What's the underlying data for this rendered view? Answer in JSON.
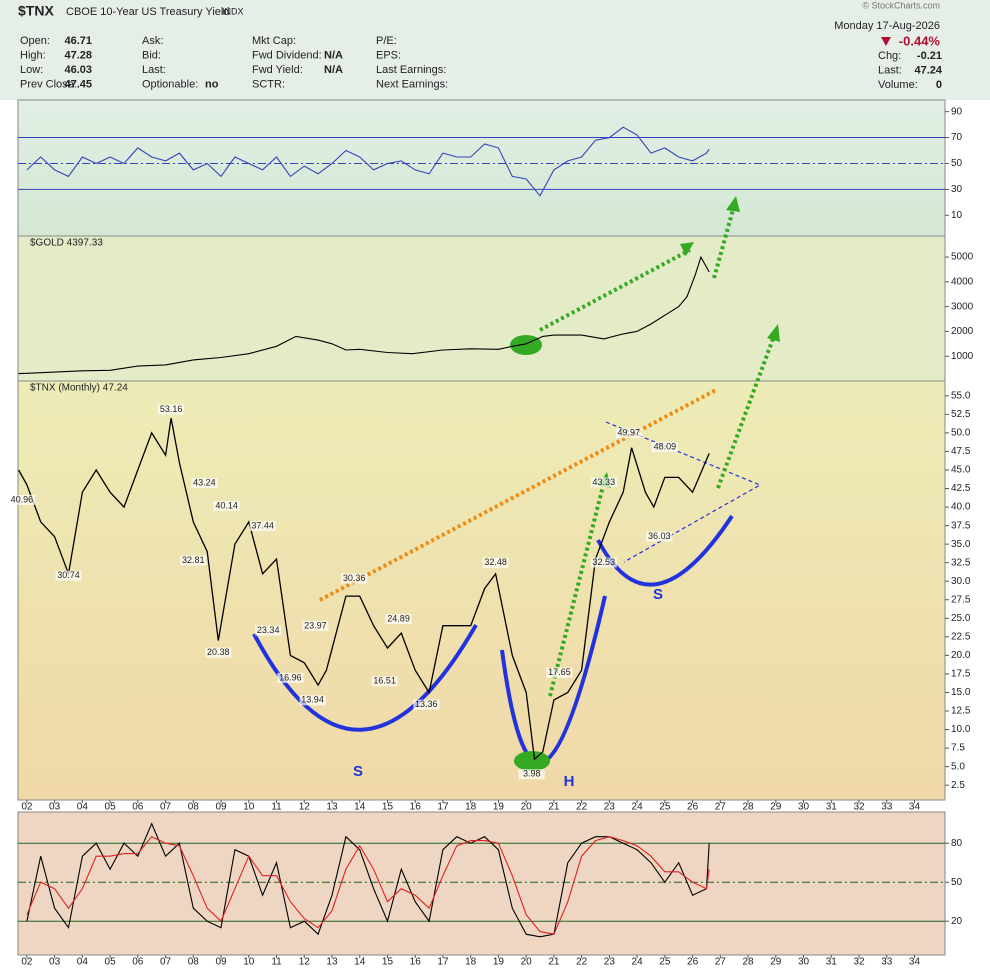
{
  "header": {
    "symbol": "$TNX",
    "name": "CBOE 10-Year US Treasury Yield",
    "exchange": "INDX",
    "date": "Monday 17-Aug-2026",
    "change_pct": "-0.44%",
    "watermark": "© StockCharts.com",
    "columns": [
      [
        {
          "label": "Open:",
          "value": 46.71
        },
        {
          "label": "High:",
          "value": 47.28
        },
        {
          "label": "Low:",
          "value": 46.03
        },
        {
          "label": "Prev Close:",
          "value": 47.45
        }
      ],
      [
        {
          "label": "Ask:"
        },
        {
          "label": "Bid:"
        },
        {
          "label": "Last:"
        },
        {
          "label": "Optionable:",
          "value": "no"
        }
      ],
      [
        {
          "label": "Mkt Cap:"
        },
        {
          "label": "Fwd Dividend:",
          "value": "N/A"
        },
        {
          "label": "Fwd Yield:",
          "value": "N/A"
        },
        {
          "label": "SCTR:"
        }
      ],
      [
        {
          "label": "P/E:"
        },
        {
          "label": "EPS:"
        },
        {
          "label": "Last Earnings:"
        },
        {
          "label": "Next Earnings:"
        }
      ]
    ],
    "right": [
      {
        "label": "Chg:",
        "value": -0.21
      },
      {
        "label": "Last:",
        "value": 47.24
      },
      {
        "label": "Volume:",
        "value": 0
      }
    ]
  },
  "chart_data": [
    {
      "type": "line",
      "xlim": [
        1.68,
        35.1
      ],
      "ylim": [
        -6,
        99
      ],
      "yticks": [
        10,
        30,
        50,
        70,
        90
      ],
      "levels": [
        30,
        50,
        70
      ],
      "x": [
        2,
        2.5,
        3,
        3.5,
        4,
        4.5,
        5,
        5.5,
        6,
        6.5,
        7,
        7.5,
        8,
        8.5,
        9,
        9.5,
        10,
        10.5,
        11,
        11.5,
        12,
        12.5,
        13,
        13.5,
        14,
        14.5,
        15,
        15.5,
        16,
        16.5,
        17,
        17.5,
        18,
        18.5,
        19,
        19.5,
        20,
        20.5,
        21,
        21.5,
        22,
        22.5,
        23,
        23.5,
        24,
        24.5,
        25,
        25.5,
        26,
        26.5,
        26.6
      ],
      "series": [
        {
          "color": "#3344bb",
          "values": [
            45,
            55,
            45,
            40,
            55,
            50,
            55,
            50,
            62,
            55,
            52,
            58,
            45,
            50,
            40,
            55,
            50,
            45,
            55,
            40,
            48,
            42,
            50,
            60,
            55,
            45,
            50,
            52,
            45,
            42,
            58,
            55,
            55,
            65,
            62,
            40,
            38,
            25,
            45,
            52,
            55,
            68,
            70,
            78,
            72,
            58,
            62,
            55,
            52,
            58,
            61
          ]
        }
      ]
    },
    {
      "type": "line",
      "label": "$GOLD 4397.33",
      "xlim": [
        1.68,
        35.1
      ],
      "ylim": [
        0,
        5850
      ],
      "yticks": [
        1000,
        2000,
        3000,
        4000,
        5000
      ],
      "x": [
        1.7,
        2,
        3,
        4,
        5,
        6,
        7,
        8,
        8.5,
        9,
        10,
        11,
        11.7,
        12.5,
        13,
        13.5,
        14,
        15,
        15.9,
        17,
        18,
        19,
        19.5,
        20,
        20.6,
        21,
        22,
        22.8,
        23.5,
        24,
        24.5,
        25,
        25.5,
        25.8,
        26.1,
        26.3,
        26.6
      ],
      "series": [
        {
          "color": "#000000",
          "values": [
            300,
            310,
            360,
            410,
            430,
            600,
            650,
            850,
            900,
            950,
            1100,
            1400,
            1800,
            1650,
            1500,
            1250,
            1280,
            1150,
            1100,
            1250,
            1300,
            1280,
            1400,
            1500,
            1800,
            1850,
            1850,
            1700,
            1900,
            2000,
            2300,
            2650,
            3000,
            3400,
            4300,
            5000,
            4397.33
          ]
        }
      ]
    },
    {
      "type": "line",
      "label": "$TNX (Monthly) 47.24",
      "xlim": [
        1.68,
        35.1
      ],
      "ylim": [
        0.5,
        57
      ],
      "yticks": [
        2.5,
        {
          "value": 5,
          "label": "5.0"
        },
        7.5,
        {
          "value": 10,
          "label": "10.0"
        },
        12.5,
        {
          "value": 15,
          "label": "15.0"
        },
        17.5,
        {
          "value": 20,
          "label": "20.0"
        },
        22.5,
        {
          "value": 25,
          "label": "25.0"
        },
        27.5,
        {
          "value": 30,
          "label": "30.0"
        },
        32.5,
        {
          "value": 35,
          "label": "35.0"
        },
        37.5,
        {
          "value": 40,
          "label": "40.0"
        },
        42.5,
        {
          "value": 45,
          "label": "45.0"
        },
        47.5,
        {
          "value": 50,
          "label": "50.0"
        },
        52.5,
        {
          "value": 55,
          "label": "55.0"
        }
      ],
      "xticks": [
        {
          "value": 2,
          "label": "02"
        },
        {
          "value": 3,
          "label": "03"
        },
        {
          "value": 4,
          "label": "04"
        },
        {
          "value": 5,
          "label": "05"
        },
        {
          "value": 6,
          "label": "06"
        },
        {
          "value": 7,
          "label": "07"
        },
        {
          "value": 8,
          "label": "08"
        },
        {
          "value": 9,
          "label": "09"
        },
        10,
        11,
        12,
        13,
        14,
        15,
        16,
        17,
        18,
        19,
        20,
        21,
        22,
        23,
        24,
        25,
        26,
        27,
        28,
        29,
        30,
        31,
        32,
        33,
        34
      ],
      "x": [
        1.7,
        2,
        2.5,
        3,
        3.5,
        4,
        4.5,
        5,
        5.5,
        6,
        6.5,
        7,
        7.2,
        7.5,
        8,
        8.5,
        8.9,
        9.5,
        10,
        10.5,
        11,
        11.5,
        12,
        12.5,
        12.8,
        13.5,
        14,
        14.5,
        15,
        15.5,
        16,
        16.5,
        17,
        17.5,
        18,
        18.5,
        18.9,
        19.5,
        20,
        20.3,
        20.6,
        21,
        21.5,
        22,
        22.5,
        23,
        23.5,
        23.8,
        24.3,
        24.6,
        25,
        25.5,
        26,
        26.6
      ],
      "series": [
        {
          "color": "#000000",
          "values": [
            45,
            43,
            38,
            36,
            31,
            42,
            45,
            42,
            40,
            45,
            50,
            47,
            52,
            46,
            38,
            34,
            22,
            35,
            38,
            31,
            33,
            20,
            19,
            16,
            18,
            28,
            28,
            24,
            21,
            23,
            18,
            15,
            24,
            24,
            24,
            29,
            31,
            20,
            15,
            6,
            7,
            14,
            15,
            18,
            33,
            38,
            42,
            48,
            42,
            40,
            44,
            44,
            42,
            47.24
          ]
        }
      ],
      "annotations": [
        {
          "label": "40.96",
          "x": 1.82,
          "value": 40.96
        },
        {
          "label": "30.74",
          "x": 3.5,
          "value": 30.74
        },
        {
          "label": "53.16",
          "x": 7.2,
          "value": 53.16
        },
        {
          "label": "43.24",
          "x": 8.4,
          "value": 43.24
        },
        {
          "label": "32.81",
          "x": 8.0,
          "value": 32.81
        },
        {
          "label": "40.14",
          "x": 9.2,
          "value": 40.14
        },
        {
          "label": "20.38",
          "x": 8.9,
          "value": 20.38
        },
        {
          "label": "37.44",
          "x": 10.5,
          "value": 37.44
        },
        {
          "label": "23.34",
          "x": 10.7,
          "value": 23.34
        },
        {
          "label": "16.96",
          "x": 11.5,
          "value": 16.96
        },
        {
          "label": "13.94",
          "x": 12.3,
          "value": 13.94
        },
        {
          "label": "23.97",
          "x": 12.4,
          "value": 23.97
        },
        {
          "label": "30.36",
          "x": 13.8,
          "value": 30.36
        },
        {
          "label": "24.89",
          "x": 15.4,
          "value": 24.89
        },
        {
          "label": "16.51",
          "x": 14.9,
          "value": 16.51
        },
        {
          "label": "13.36",
          "x": 16.4,
          "value": 13.36
        },
        {
          "label": "32.48",
          "x": 18.9,
          "value": 32.48
        },
        {
          "label": "17.65",
          "x": 21.2,
          "value": 17.65
        },
        {
          "label": "3.98",
          "x": 20.2,
          "value": 3.98
        },
        {
          "label": "43.33",
          "x": 22.8,
          "value": 43.33
        },
        {
          "label": "32.53",
          "x": 22.8,
          "value": 32.53
        },
        {
          "label": "49.97",
          "x": 23.7,
          "value": 49.97
        },
        {
          "label": "48.09",
          "x": 25.0,
          "value": 48.09
        },
        {
          "label": "36.03",
          "x": 24.8,
          "value": 36.03
        }
      ],
      "pattern_labels": [
        "S",
        "H",
        "S"
      ]
    },
    {
      "type": "line",
      "xlim": [
        1.68,
        35.1
      ],
      "ylim": [
        -6,
        104
      ],
      "yticks": [
        20,
        50,
        80
      ],
      "levels": [
        20,
        50,
        80
      ],
      "xticks": [
        {
          "value": 2,
          "label": "02"
        },
        {
          "value": 3,
          "label": "03"
        },
        {
          "value": 4,
          "label": "04"
        },
        {
          "value": 5,
          "label": "05"
        },
        {
          "value": 6,
          "label": "06"
        },
        {
          "value": 7,
          "label": "07"
        },
        {
          "value": 8,
          "label": "08"
        },
        {
          "value": 9,
          "label": "09"
        },
        10,
        11,
        12,
        13,
        14,
        15,
        16,
        17,
        18,
        19,
        20,
        21,
        22,
        23,
        24,
        25,
        26,
        27,
        28,
        29,
        30,
        31,
        32,
        33,
        34
      ],
      "x": [
        2,
        2.5,
        3,
        3.5,
        4,
        4.5,
        5,
        5.5,
        6,
        6.5,
        7,
        7.5,
        8,
        8.5,
        9,
        9.5,
        10,
        10.5,
        11,
        11.5,
        12,
        12.5,
        13,
        13.5,
        14,
        14.5,
        15,
        15.5,
        16,
        16.5,
        17,
        17.5,
        18,
        18.5,
        19,
        19.5,
        20,
        20.5,
        21,
        21.5,
        22,
        22.5,
        23,
        23.5,
        24,
        24.5,
        25,
        25.5,
        26,
        26.5,
        26.6
      ],
      "series": [
        {
          "color": "#000000",
          "values": [
            20,
            70,
            30,
            15,
            70,
            80,
            60,
            80,
            70,
            95,
            70,
            80,
            30,
            20,
            15,
            75,
            70,
            40,
            65,
            15,
            20,
            10,
            40,
            85,
            75,
            45,
            20,
            60,
            35,
            20,
            75,
            85,
            80,
            85,
            75,
            30,
            10,
            8,
            10,
            65,
            80,
            85,
            85,
            80,
            75,
            65,
            50,
            65,
            40,
            45,
            80
          ]
        },
        {
          "color": "#dd2222",
          "values": [
            25,
            50,
            45,
            30,
            45,
            70,
            70,
            72,
            72,
            85,
            80,
            78,
            55,
            30,
            20,
            45,
            70,
            55,
            55,
            35,
            22,
            15,
            28,
            60,
            78,
            60,
            35,
            45,
            40,
            30,
            55,
            78,
            82,
            82,
            80,
            55,
            25,
            12,
            10,
            35,
            70,
            82,
            85,
            82,
            78,
            70,
            58,
            58,
            50,
            45,
            60
          ]
        }
      ]
    }
  ]
}
